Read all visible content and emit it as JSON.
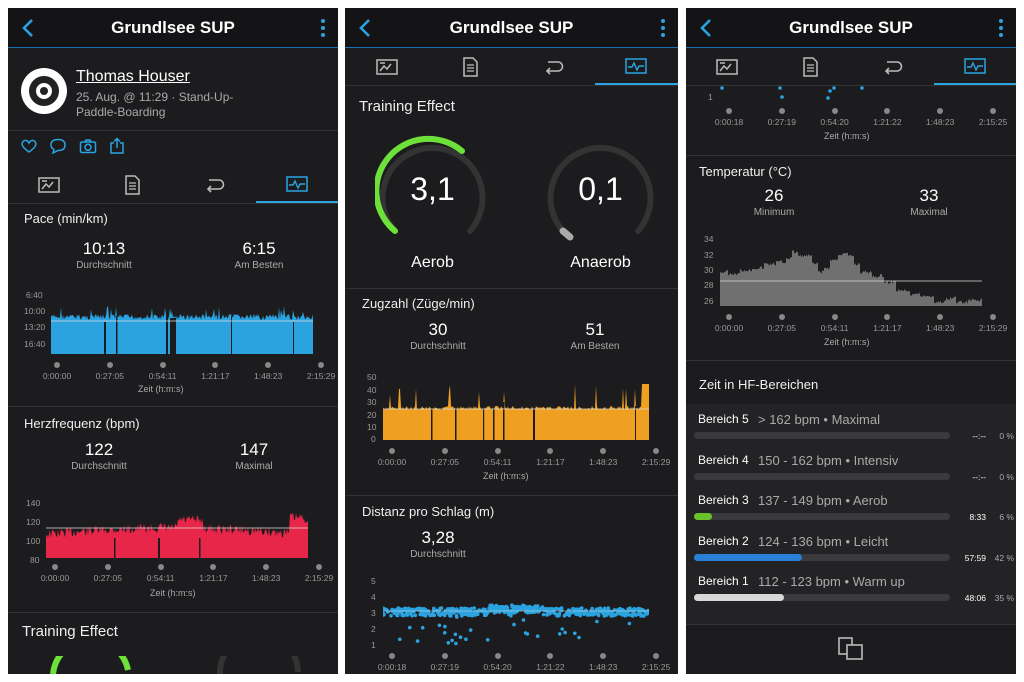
{
  "header": {
    "title": "Grundlsee SUP"
  },
  "profile": {
    "name": "Thomas Houser",
    "meta_line1": "25. Aug. @ 11:29 · Stand-Up-",
    "meta_line2": "Paddle-Boarding"
  },
  "time_axis": {
    "t1": [
      "0:00:00",
      "0:27:05",
      "0:54:11",
      "1:21:17",
      "1:48:23",
      "2:15:29"
    ],
    "t2": [
      "0:00:18",
      "0:27:19",
      "0:54:20",
      "1:21:22",
      "1:48:23",
      "2:15:25"
    ],
    "t3": [
      "0:00:18",
      "0:27:19",
      "0:54:20",
      "1:21:22",
      "1:48:23",
      "2:15:25"
    ],
    "t4": [
      "0:00:00",
      "0:27:05",
      "0:54:11",
      "1:21:17",
      "1:48:23",
      "2:15:29"
    ],
    "label": "Zeit (h:m:s)"
  },
  "pace": {
    "title": "Pace (min/km)",
    "avg": "10:13",
    "avg_label": "Durchschnitt",
    "best": "6:15",
    "best_label": "Am Besten",
    "yticks": [
      "6:40",
      "10:00",
      "13:20",
      "16:40"
    ]
  },
  "hr": {
    "title": "Herzfrequenz (bpm)",
    "avg": "122",
    "avg_label": "Durchschnitt",
    "max": "147",
    "max_label": "Maximal",
    "yticks": [
      "140",
      "120",
      "100",
      "80"
    ]
  },
  "te": {
    "title": "Training Effect",
    "aerob_value": "3,1",
    "aerob_label": "Aerob",
    "anaerob_value": "0,1",
    "anaerob_label": "Anaerob"
  },
  "strokes": {
    "title": "Zugzahl (Züge/min)",
    "avg": "30",
    "avg_label": "Durchschnitt",
    "best": "51",
    "best_label": "Am Besten",
    "yticks": [
      "50",
      "40",
      "30",
      "20",
      "10",
      "0"
    ]
  },
  "dps": {
    "title": "Distanz pro Schlag (m)",
    "avg": "3,28",
    "avg_label": "Durchschnitt",
    "yticks": [
      "5",
      "4",
      "3",
      "2",
      "1"
    ],
    "top_tick": "1"
  },
  "temp": {
    "title": "Temperatur (°C)",
    "min": "26",
    "min_label": "Minimum",
    "max": "33",
    "max_label": "Maximal",
    "yticks": [
      "34",
      "32",
      "30",
      "28",
      "26"
    ]
  },
  "hf": {
    "title": "Zeit in HF-Bereichen",
    "zones": [
      {
        "name": "Bereich 5",
        "range": "> 162 bpm • Maximal",
        "time": "--:--",
        "pct": "0 %",
        "frac": 0,
        "color": "#888888"
      },
      {
        "name": "Bereich 4",
        "range": "150 - 162 bpm • Intensiv",
        "time": "--:--",
        "pct": "0 %",
        "frac": 0,
        "color": "#e07020"
      },
      {
        "name": "Bereich 3",
        "range": "137 - 149 bpm • Aerob",
        "time": "8:33",
        "pct": "6 %",
        "frac": 0.06,
        "color": "#6ac12a"
      },
      {
        "name": "Bereich 2",
        "range": "124 - 136 bpm • Leicht",
        "time": "57:59",
        "pct": "42 %",
        "frac": 0.42,
        "color": "#2a7fd6"
      },
      {
        "name": "Bereich 1",
        "range": "112 - 123 bpm • Warm up",
        "time": "48:06",
        "pct": "35 %",
        "frac": 0.35,
        "color": "#d8d8d8"
      }
    ]
  },
  "colors": {
    "pace": "#2aa3e0",
    "hr": "#e8264a",
    "strokes": "#f0a020",
    "te_arc": "#6de03a",
    "accent": "#1a6fb0"
  },
  "icons": [
    "back-arrow-icon",
    "more-vertical-icon",
    "summary-tab-icon",
    "details-tab-icon",
    "laps-tab-icon",
    "charts-tab-icon",
    "heart-icon",
    "comment-icon",
    "camera-icon",
    "share-icon",
    "copy-icon"
  ]
}
